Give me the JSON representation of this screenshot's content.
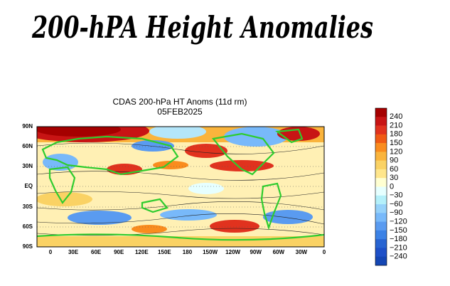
{
  "banner": "200-hPA Height Anomalies",
  "plot_title": "CDAS 200-hPa HT Anoms (11d rm)",
  "date": "05FEB2025",
  "lat_labels": [
    "90N",
    "60N",
    "30N",
    "EQ",
    "30S",
    "60S",
    "90S"
  ],
  "lon_labels": [
    "0",
    "30E",
    "60E",
    "90E",
    "120E",
    "150E",
    "180",
    "150W",
    "120W",
    "90W",
    "60W",
    "30W",
    "0"
  ],
  "colorbar_labels": [
    "240",
    "210",
    "180",
    "150",
    "120",
    "90",
    "60",
    "30",
    "0",
    "−30",
    "−60",
    "−90",
    "−120",
    "−150",
    "−180",
    "−210",
    "−240"
  ]
}
